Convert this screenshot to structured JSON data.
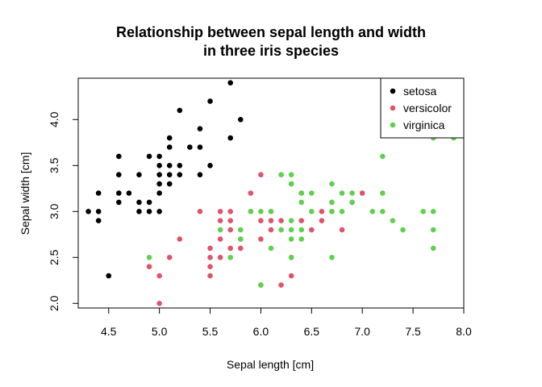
{
  "chart_data": {
    "type": "scatter",
    "title": [
      "Relationship between sepal length and width",
      "in three iris species"
    ],
    "xlabel": "Sepal length [cm]",
    "ylabel": "Sepal width [cm]",
    "xlim": [
      4.2,
      8.0
    ],
    "ylim": [
      1.95,
      4.45
    ],
    "x_ticks": [
      4.5,
      5.0,
      5.5,
      6.0,
      6.5,
      7.0,
      7.5,
      8.0
    ],
    "y_ticks": [
      2.0,
      2.5,
      3.0,
      3.5,
      4.0
    ],
    "grid": false,
    "legend_position": "top-right",
    "series": [
      {
        "name": "setosa",
        "color": "#000000",
        "points": [
          [
            4.3,
            3.0
          ],
          [
            4.4,
            2.9
          ],
          [
            4.4,
            3.0
          ],
          [
            4.4,
            3.2
          ],
          [
            4.5,
            2.3
          ],
          [
            4.6,
            3.1
          ],
          [
            4.6,
            3.2
          ],
          [
            4.6,
            3.4
          ],
          [
            4.6,
            3.6
          ],
          [
            4.7,
            3.2
          ],
          [
            4.8,
            3.0
          ],
          [
            4.8,
            3.1
          ],
          [
            4.8,
            3.4
          ],
          [
            4.9,
            3.0
          ],
          [
            4.9,
            3.1
          ],
          [
            4.9,
            3.6
          ],
          [
            5.0,
            3.0
          ],
          [
            5.0,
            3.2
          ],
          [
            5.0,
            3.3
          ],
          [
            5.0,
            3.4
          ],
          [
            5.0,
            3.5
          ],
          [
            5.0,
            3.6
          ],
          [
            5.1,
            3.3
          ],
          [
            5.1,
            3.4
          ],
          [
            5.1,
            3.5
          ],
          [
            5.1,
            3.7
          ],
          [
            5.1,
            3.8
          ],
          [
            5.2,
            3.4
          ],
          [
            5.2,
            3.5
          ],
          [
            5.2,
            4.1
          ],
          [
            5.3,
            3.7
          ],
          [
            5.4,
            3.4
          ],
          [
            5.4,
            3.7
          ],
          [
            5.4,
            3.9
          ],
          [
            5.5,
            3.5
          ],
          [
            5.5,
            4.2
          ],
          [
            5.7,
            3.8
          ],
          [
            5.7,
            4.4
          ],
          [
            5.8,
            4.0
          ]
        ]
      },
      {
        "name": "versicolor",
        "color": "#DF536B",
        "points": [
          [
            4.9,
            2.4
          ],
          [
            5.0,
            2.0
          ],
          [
            5.0,
            2.3
          ],
          [
            5.1,
            2.5
          ],
          [
            5.2,
            2.7
          ],
          [
            5.4,
            3.0
          ],
          [
            5.5,
            2.3
          ],
          [
            5.5,
            2.4
          ],
          [
            5.5,
            2.5
          ],
          [
            5.5,
            2.6
          ],
          [
            5.6,
            2.5
          ],
          [
            5.6,
            2.7
          ],
          [
            5.6,
            2.9
          ],
          [
            5.6,
            3.0
          ],
          [
            5.7,
            2.6
          ],
          [
            5.7,
            2.8
          ],
          [
            5.7,
            2.9
          ],
          [
            5.7,
            3.0
          ],
          [
            5.8,
            2.6
          ],
          [
            5.8,
            2.7
          ],
          [
            5.9,
            3.0
          ],
          [
            5.9,
            3.2
          ],
          [
            6.0,
            2.2
          ],
          [
            6.0,
            2.7
          ],
          [
            6.0,
            2.9
          ],
          [
            6.0,
            3.4
          ],
          [
            6.1,
            2.8
          ],
          [
            6.1,
            2.9
          ],
          [
            6.1,
            3.0
          ],
          [
            6.2,
            2.2
          ],
          [
            6.2,
            2.9
          ],
          [
            6.3,
            2.3
          ],
          [
            6.3,
            2.5
          ],
          [
            6.3,
            3.3
          ],
          [
            6.4,
            2.9
          ],
          [
            6.4,
            3.2
          ],
          [
            6.5,
            2.8
          ],
          [
            6.6,
            2.9
          ],
          [
            6.6,
            3.0
          ],
          [
            6.7,
            3.0
          ],
          [
            6.7,
            3.1
          ],
          [
            6.8,
            2.8
          ],
          [
            6.9,
            3.1
          ],
          [
            7.0,
            3.2
          ]
        ]
      },
      {
        "name": "virginica",
        "color": "#61D04F",
        "points": [
          [
            4.9,
            2.5
          ],
          [
            5.6,
            2.8
          ],
          [
            5.7,
            2.5
          ],
          [
            5.8,
            2.7
          ],
          [
            5.8,
            2.8
          ],
          [
            5.9,
            3.0
          ],
          [
            6.0,
            2.2
          ],
          [
            6.0,
            3.0
          ],
          [
            6.1,
            2.6
          ],
          [
            6.1,
            3.0
          ],
          [
            6.2,
            2.8
          ],
          [
            6.2,
            3.4
          ],
          [
            6.3,
            2.5
          ],
          [
            6.3,
            2.7
          ],
          [
            6.3,
            2.8
          ],
          [
            6.3,
            2.9
          ],
          [
            6.3,
            3.3
          ],
          [
            6.3,
            3.4
          ],
          [
            6.4,
            2.7
          ],
          [
            6.4,
            2.8
          ],
          [
            6.4,
            3.1
          ],
          [
            6.4,
            3.2
          ],
          [
            6.5,
            3.0
          ],
          [
            6.5,
            3.2
          ],
          [
            6.7,
            2.5
          ],
          [
            6.7,
            3.0
          ],
          [
            6.7,
            3.1
          ],
          [
            6.7,
            3.3
          ],
          [
            6.8,
            3.0
          ],
          [
            6.8,
            3.2
          ],
          [
            6.9,
            3.1
          ],
          [
            6.9,
            3.2
          ],
          [
            7.1,
            3.0
          ],
          [
            7.2,
            3.0
          ],
          [
            7.2,
            3.2
          ],
          [
            7.2,
            3.6
          ],
          [
            7.3,
            2.9
          ],
          [
            7.4,
            2.8
          ],
          [
            7.6,
            3.0
          ],
          [
            7.7,
            2.6
          ],
          [
            7.7,
            2.8
          ],
          [
            7.7,
            3.0
          ],
          [
            7.7,
            3.8
          ],
          [
            7.9,
            3.8
          ]
        ]
      }
    ]
  }
}
